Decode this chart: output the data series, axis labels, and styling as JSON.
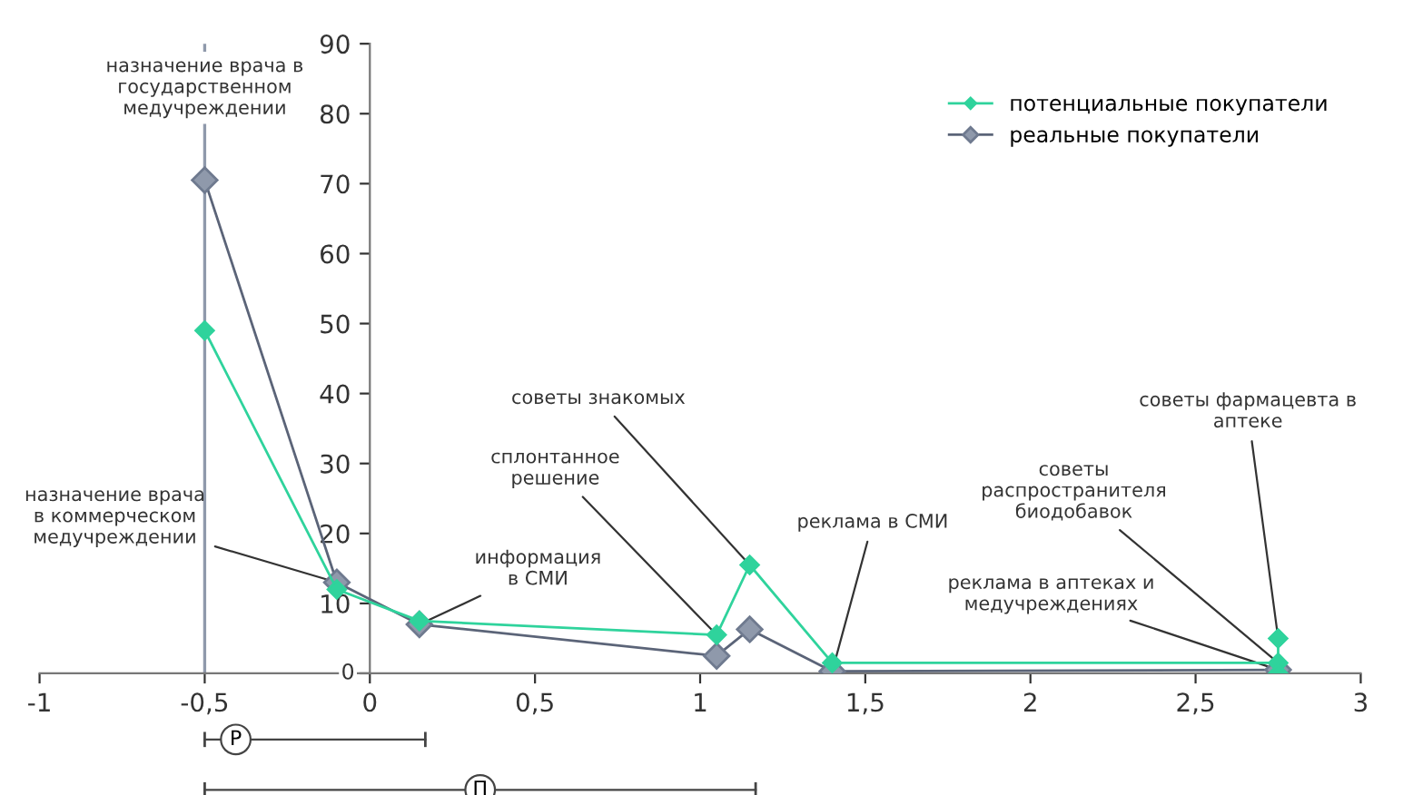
{
  "chart_data": {
    "type": "line",
    "marker": "diamond",
    "legend": "top right",
    "grid": false,
    "xlim": [
      -1,
      3
    ],
    "ylim": [
      0,
      90
    ],
    "xticks": [
      -1,
      {
        "value": -0.5,
        "label": "-0,5"
      },
      0,
      {
        "value": 0.5,
        "label": "0,5"
      },
      1,
      {
        "value": 1.5,
        "label": "1,5"
      },
      2,
      {
        "value": 2.5,
        "label": "2,5"
      },
      3
    ],
    "yticks": [
      0,
      10,
      20,
      30,
      40,
      50,
      60,
      70,
      80,
      90
    ],
    "series": [
      {
        "name": "потенциальные покупатели",
        "color": "#2fd39c",
        "x": [
          -0.5,
          -0.1,
          0.15,
          1.05,
          1.15,
          1.4,
          2.75,
          2.75,
          2.75
        ],
        "values": [
          49,
          12,
          7.5,
          5.5,
          15.5,
          1.5,
          1.5,
          5,
          0
        ]
      },
      {
        "name": "реальные покупатели",
        "color": "#8f99ab",
        "x": [
          -0.5,
          -0.1,
          0.15,
          1.05,
          1.15,
          1.4,
          2.75
        ],
        "values": [
          70.5,
          13,
          7,
          2.5,
          6.3,
          0.3,
          0.5
        ]
      }
    ],
    "ref_lines": [
      {
        "axis": "x",
        "value": -0.5,
        "color": "#8f99ab"
      }
    ],
    "annotations": [
      "назначение врача в\nгосударственном\nмедучреждении",
      {
        "text": "назначение врача\nв коммерческом\nмедучреждении",
        "x": -0.1,
        "y": 13
      },
      {
        "text": "информация\nв СМИ",
        "x": 0.15,
        "y": 7
      },
      {
        "text": "сплонтанное\nрешение",
        "x": 1.05,
        "y": 5.5
      },
      {
        "text": "советы знакомых",
        "x": 1.15,
        "y": 15.5
      },
      {
        "text": "реклама в СМИ",
        "x": 1.4,
        "y": 0.3
      },
      {
        "text": "советы\nраспространителя\nбиодобавок",
        "x": 2.75,
        "y": 1.5
      },
      {
        "text": "реклама в аптеках и\nмедучреждениях",
        "x": 2.75,
        "y": 0.5
      },
      {
        "text": "советы фармацевта в\nаптеке",
        "x": 2.75,
        "y": 5
      },
      "Р",
      "П"
    ]
  }
}
